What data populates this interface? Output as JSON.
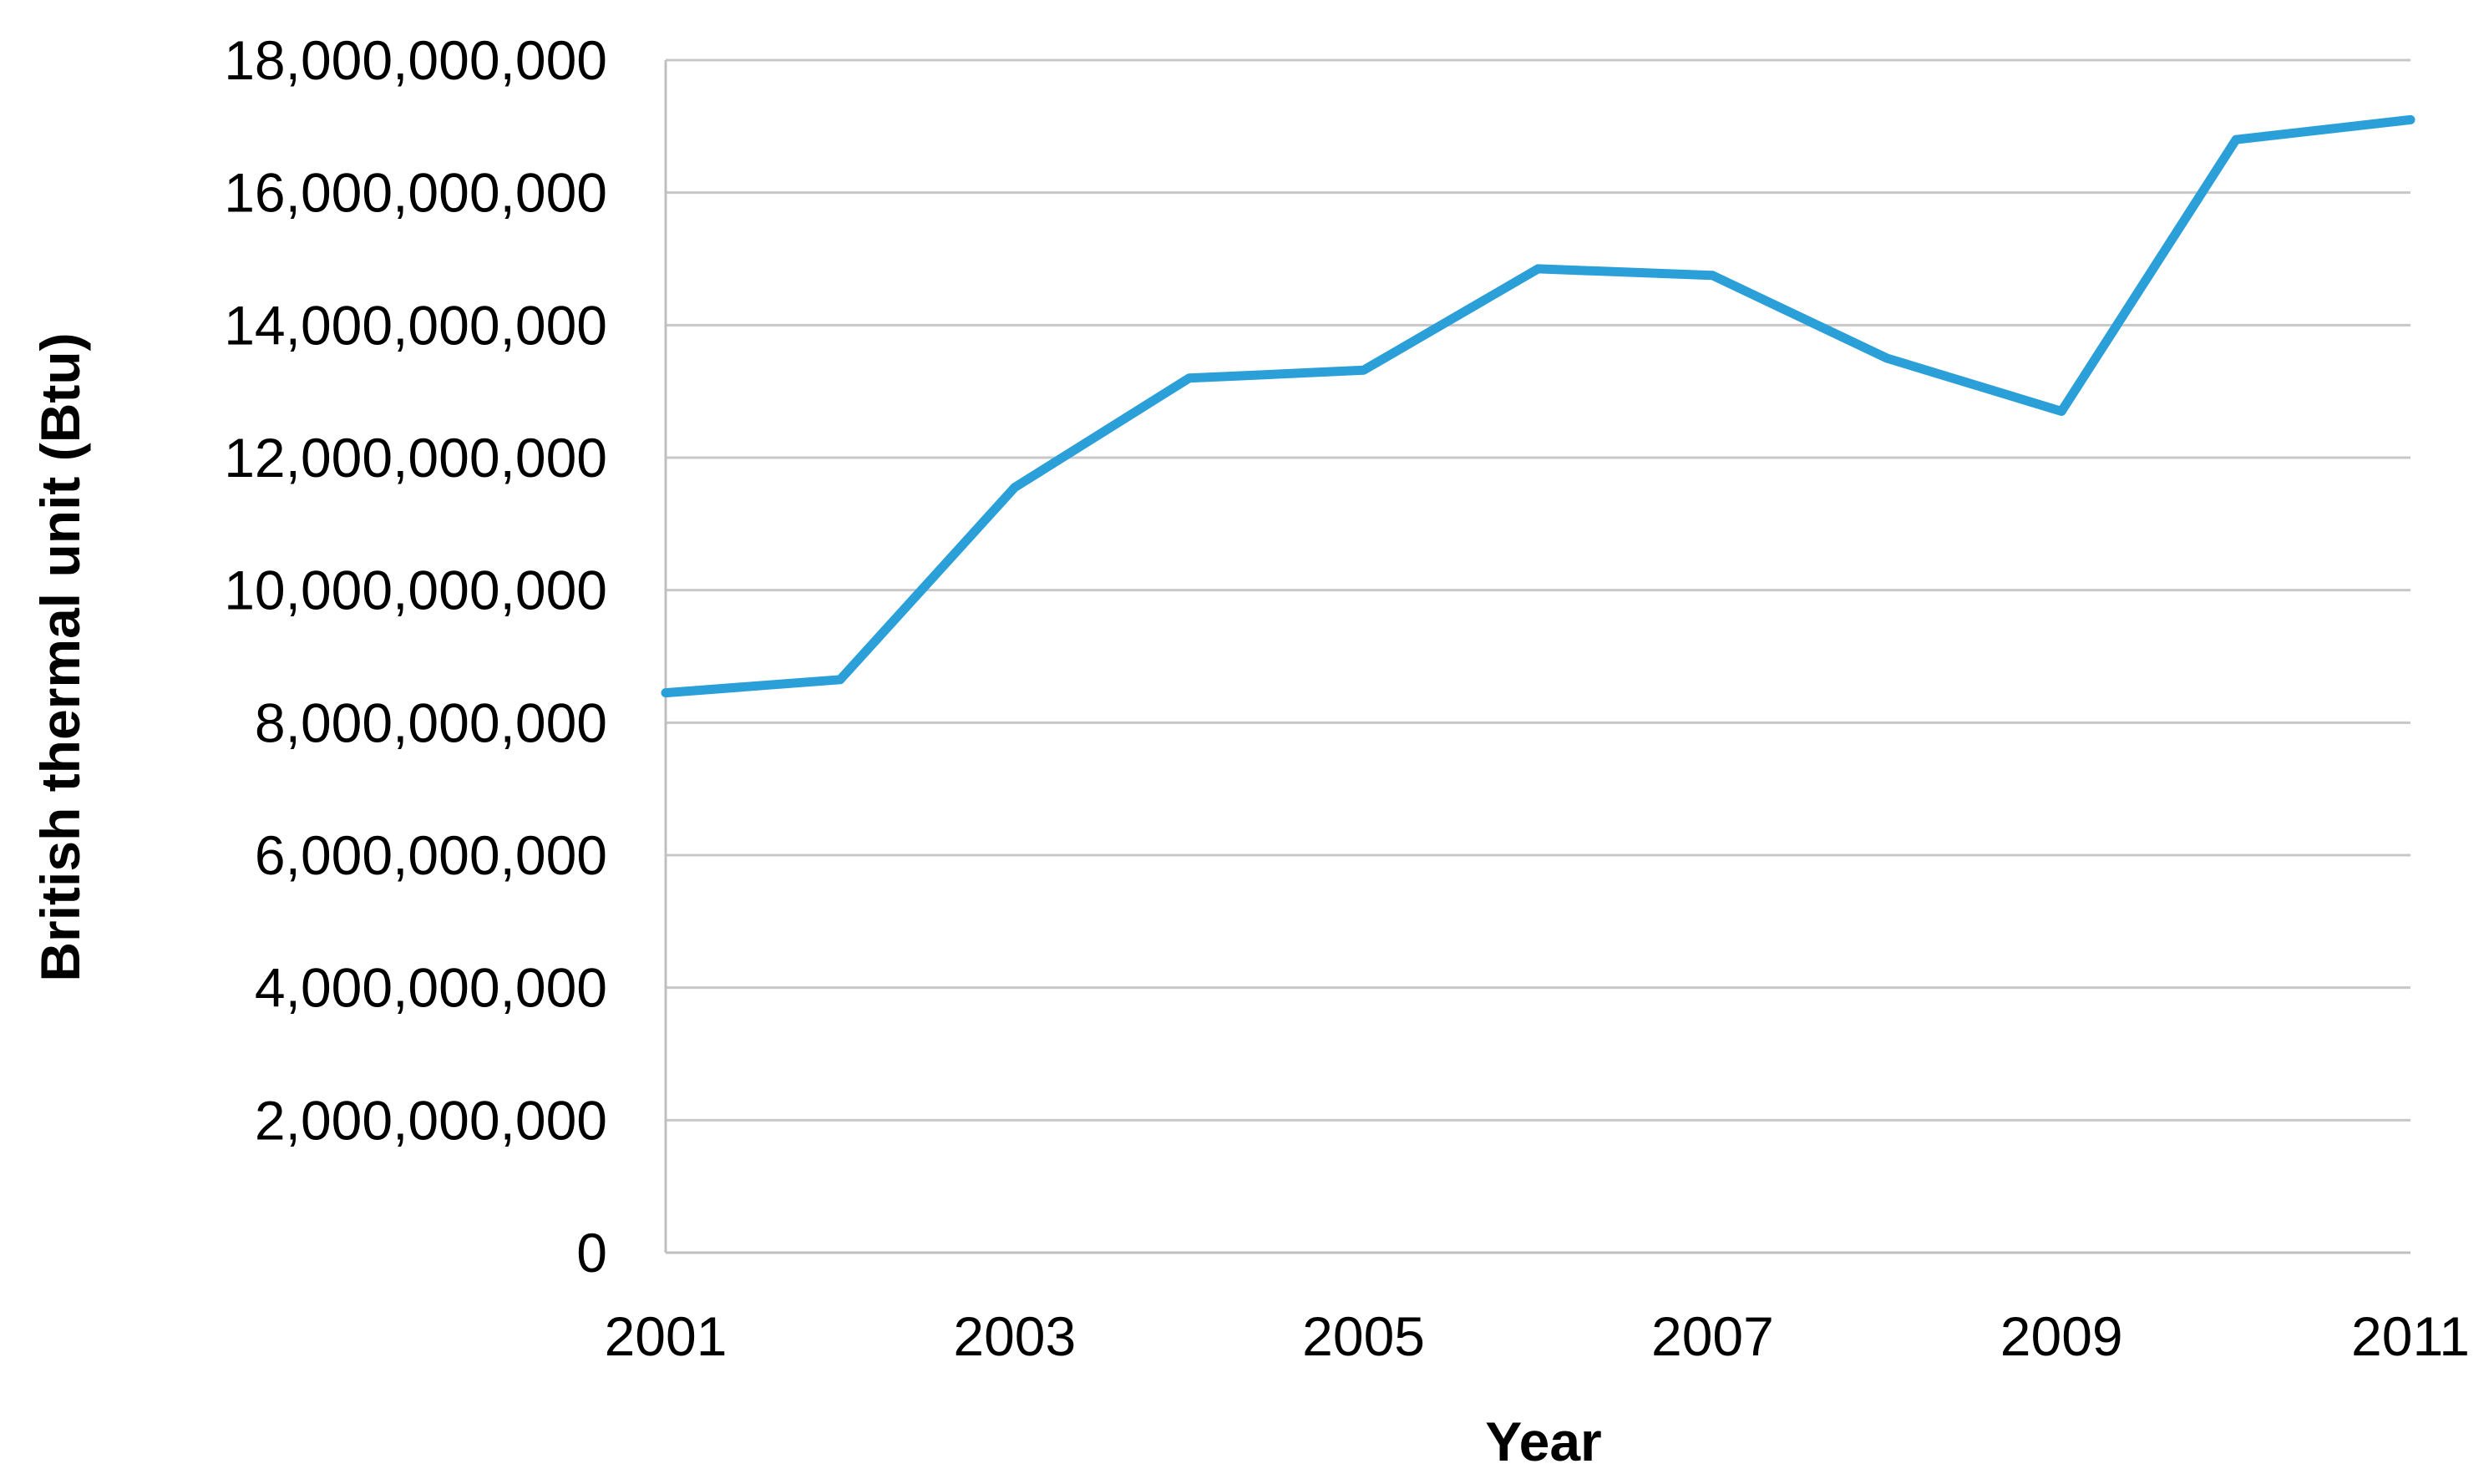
{
  "chart_data": {
    "type": "line",
    "xlabel": "Year",
    "ylabel": "British thermal unit (Btu)",
    "x": [
      2001,
      2002,
      2003,
      2004,
      2005,
      2006,
      2007,
      2008,
      2009,
      2010,
      2011
    ],
    "x_ticks": [
      2001,
      2003,
      2005,
      2007,
      2009,
      2011
    ],
    "x_tick_labels": [
      "2001",
      "2003",
      "2005",
      "2007",
      "2009",
      "2011"
    ],
    "xlim": [
      2001,
      2011
    ],
    "ylim": [
      0,
      18000000000
    ],
    "y_ticks": [
      0,
      2000000000,
      4000000000,
      6000000000,
      8000000000,
      10000000000,
      12000000000,
      14000000000,
      16000000000,
      18000000000
    ],
    "y_tick_labels": [
      "0",
      "2,000,000,000",
      "4,000,000,000",
      "6,000,000,000",
      "8,000,000,000",
      "10,000,000,000",
      "12,000,000,000",
      "14,000,000,000",
      "16,000,000,000",
      "18,000,000,000"
    ],
    "grid": true,
    "legend": "none",
    "series": [
      {
        "values": [
          8450000000,
          8650000000,
          11550000000,
          13200000000,
          13320000000,
          14850000000,
          14750000000,
          13500000000,
          12700000000,
          16800000000,
          17100000000
        ],
        "color": "#2a9fd8"
      }
    ]
  }
}
